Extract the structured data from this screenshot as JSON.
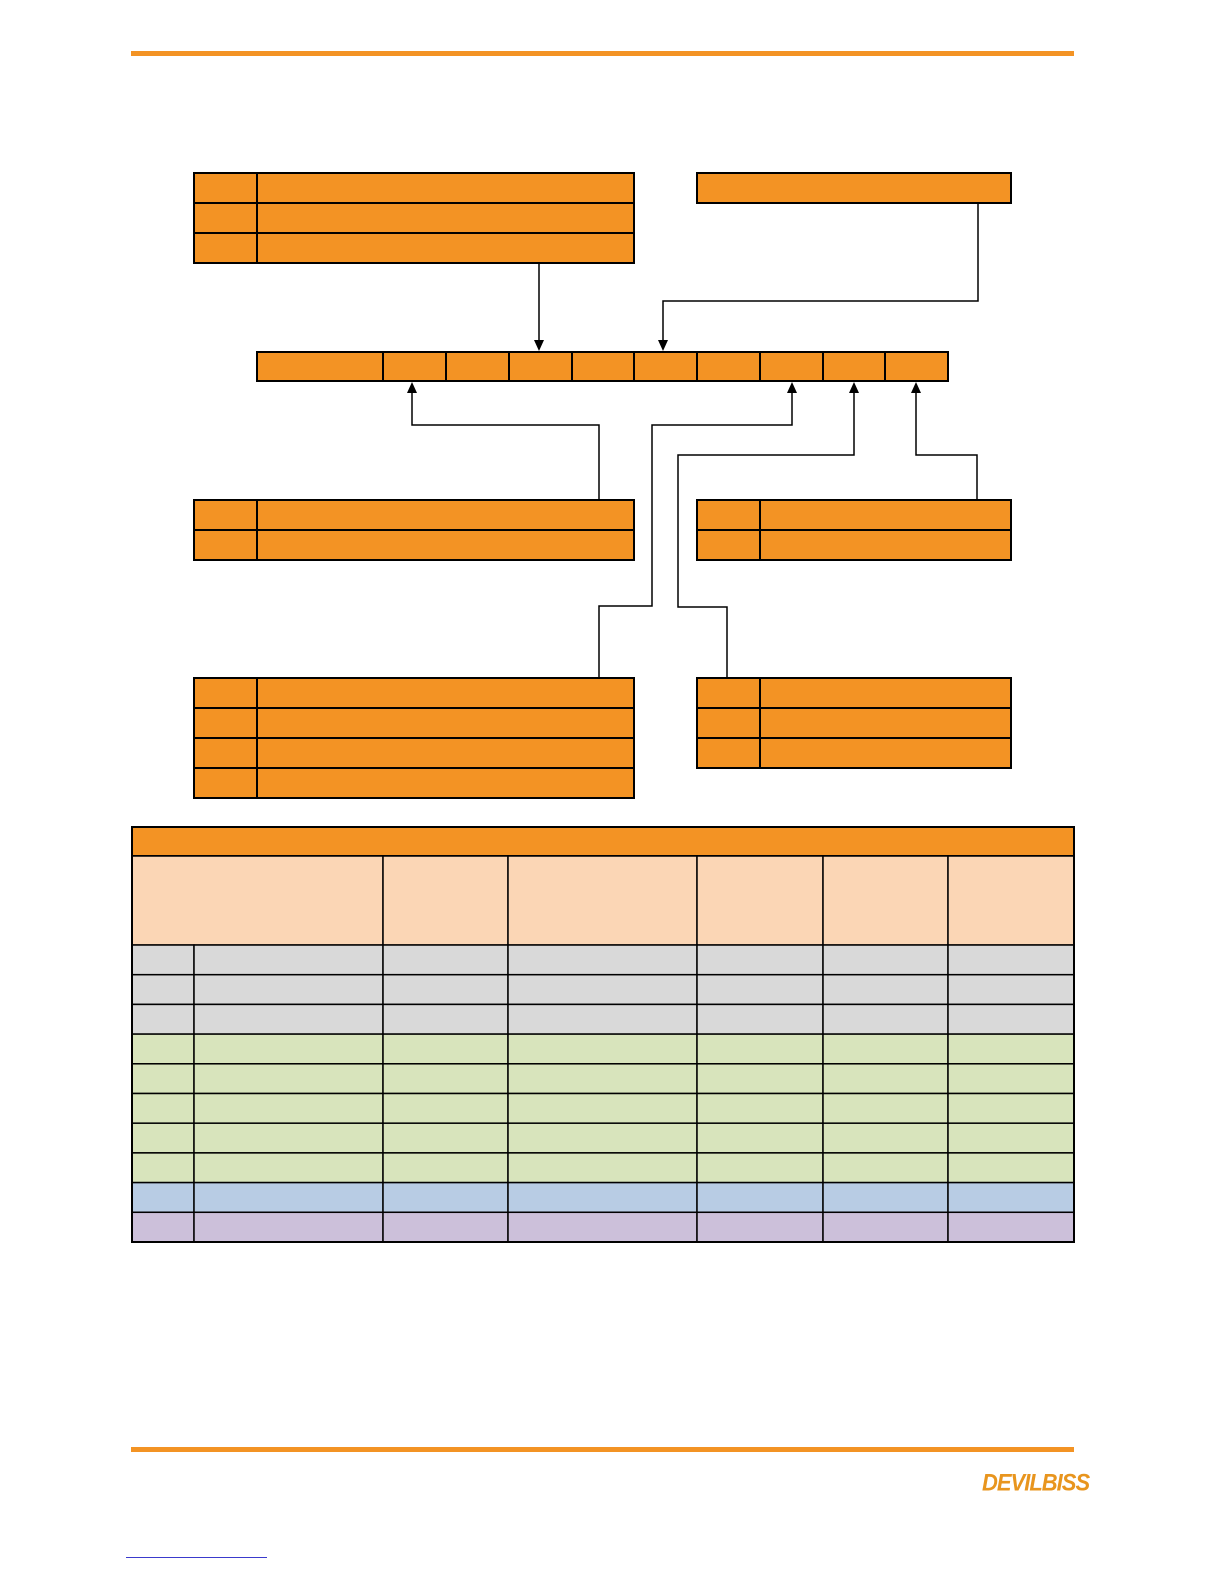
{
  "colors": {
    "accent": "#f39324",
    "peach": "#fbd6b5",
    "gray": "#d9d9d9",
    "green": "#d8e4bc",
    "blue": "#b8cce4",
    "purple": "#ccc0da",
    "line": "#000000"
  },
  "footer": {
    "logo": "DEVILBISS"
  },
  "table": {
    "row_groups": [
      {
        "color": "gray",
        "rows": 3
      },
      {
        "color": "green",
        "rows": 5
      },
      {
        "color": "blue",
        "rows": 1
      },
      {
        "color": "purple",
        "rows": 1
      }
    ]
  }
}
